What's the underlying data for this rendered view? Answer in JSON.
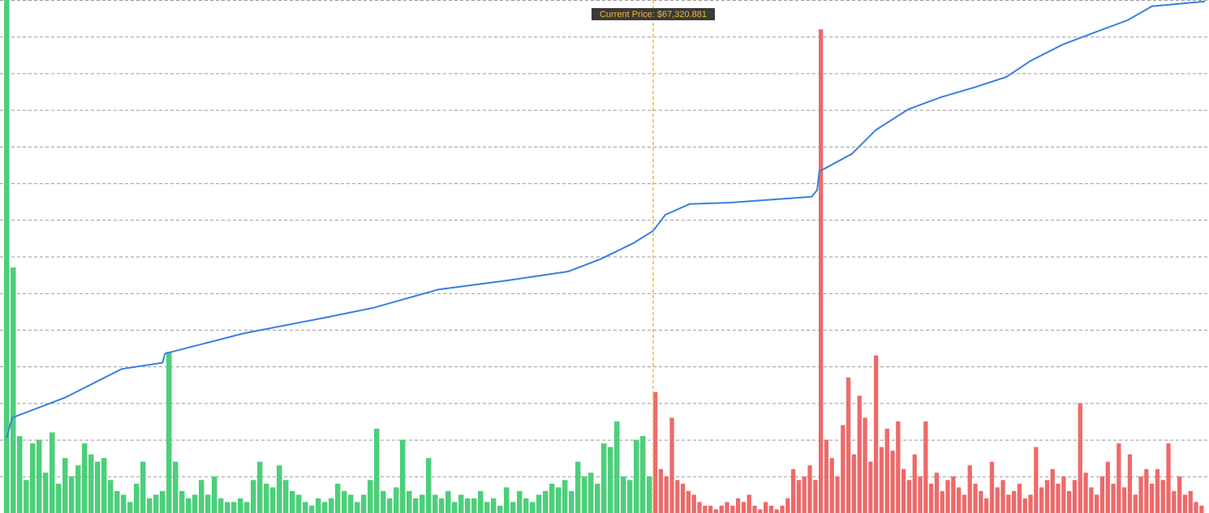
{
  "chart_data": {
    "type": "bar",
    "current_price_label": "Current Price: $67,320.881",
    "current_price_color": "#f5b82e",
    "ylim": [
      0,
      14
    ],
    "xlim": [
      0,
      200
    ],
    "series": [
      {
        "color": "#4ccf7a",
        "values": [
          14,
          6.7,
          2.1,
          0.9,
          1.9,
          2.0,
          1.1,
          2.2,
          0.8,
          1.5,
          1.0,
          1.3,
          1.9,
          1.6,
          1.4,
          1.5,
          0.9,
          0.6,
          0.5,
          0.3,
          0.8,
          1.4,
          0.4,
          0.5,
          0.6,
          4.4,
          1.4,
          0.6,
          0.4,
          0.5,
          0.9,
          0.5,
          1.0,
          0.4,
          0.3,
          0.3,
          0.4,
          0.3,
          0.9,
          1.4,
          0.8,
          0.7,
          1.3,
          0.9,
          0.6,
          0.5,
          0.3,
          0.2,
          0.4,
          0.3,
          0.4,
          0.8,
          0.6,
          0.5,
          0.3,
          0.5,
          0.9,
          2.3,
          0.6,
          0.4,
          0.7,
          2.0,
          0.6,
          0.4,
          0.5,
          1.5,
          0.5,
          0.4,
          0.6,
          0.3,
          0.5,
          0.4,
          0.4,
          0.6,
          0.3,
          0.4,
          0.2,
          0.7,
          0.3,
          0.6,
          0.4,
          0.3,
          0.5,
          0.6,
          0.8,
          0.7,
          0.9,
          0.6,
          1.4,
          1.0,
          1.1,
          0.8,
          1.9,
          1.8,
          2.5,
          1.0,
          0.9,
          2.0,
          2.1,
          1.0
        ]
      },
      {
        "color": "#ec6a6a",
        "values": [
          3.3,
          1.2,
          1.0,
          2.6,
          0.9,
          0.8,
          0.6,
          0.5,
          0.3,
          0.2,
          0.2,
          0.1,
          0.2,
          0.3,
          0.2,
          0.4,
          0.3,
          0.5,
          0.2,
          0.1,
          0.3,
          0.2,
          0.1,
          0.2,
          0.4,
          1.2,
          0.9,
          1.0,
          1.3,
          0.9,
          13.2,
          2.0,
          1.5,
          1.0,
          2.4,
          3.7,
          1.6,
          3.2,
          2.6,
          1.4,
          4.3,
          1.8,
          2.3,
          1.7,
          2.5,
          1.2,
          0.9,
          1.6,
          1.0,
          2.5,
          0.8,
          1.1,
          0.6,
          0.9,
          1.0,
          0.7,
          0.5,
          1.3,
          0.8,
          0.6,
          0.4,
          1.4,
          0.7,
          0.9,
          0.5,
          0.6,
          0.8,
          0.4,
          0.5,
          1.8,
          0.7,
          0.9,
          1.2,
          0.8,
          1.0,
          0.6,
          0.9,
          3.0,
          1.1,
          0.7,
          0.5,
          1.0,
          1.4,
          0.8,
          1.9,
          0.7,
          1.6,
          0.5,
          1.0,
          1.2,
          0.8,
          1.2,
          0.9,
          1.9,
          0.6,
          1.0,
          0.5,
          0.6,
          0.3,
          0.2
        ]
      }
    ],
    "line": {
      "color": "#3a7fe0",
      "x": [
        0.4,
        1.25,
        9.4,
        18.1,
        24.4,
        24.8,
        36.9,
        49.4,
        56.9,
        66.9,
        76.9,
        86.9,
        91.9,
        96.9,
        100,
        102.2,
        106.6,
        114,
        128.7,
        129.7,
        130.1,
        136,
        140.4,
        146.3,
        152.2,
        158.1,
        164,
        168.4,
        174.3,
        180.1,
        186,
        190.4,
        200
      ],
      "values": [
        2.05,
        2.6,
        3.15,
        3.93,
        4.1,
        4.35,
        4.9,
        5.33,
        5.6,
        6.1,
        6.33,
        6.59,
        6.93,
        7.36,
        7.7,
        8.14,
        8.43,
        8.47,
        8.63,
        8.81,
        9.32,
        9.8,
        10.46,
        11.02,
        11.35,
        11.61,
        11.9,
        12.34,
        12.79,
        13.12,
        13.45,
        13.83,
        13.96
      ]
    }
  }
}
